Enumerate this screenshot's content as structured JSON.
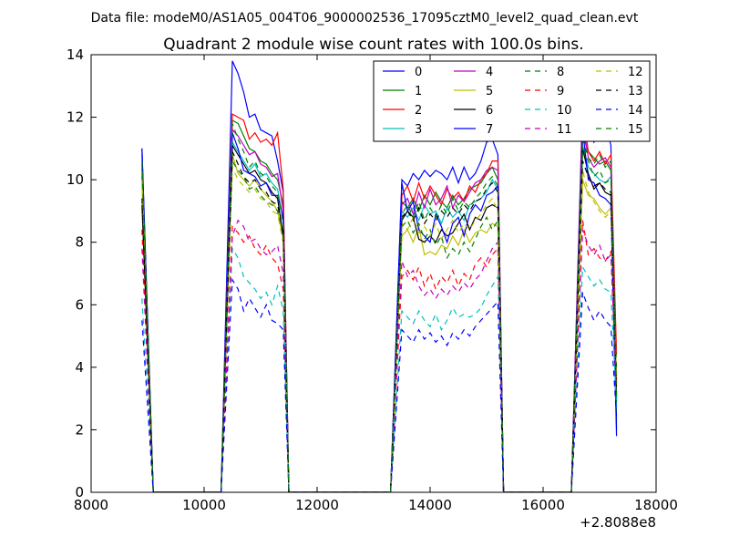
{
  "suptitle": "Data file: modeM0/AS1A05_004T06_9000002536_17095cztM0_level2_quad_clean.evt",
  "chart_data": {
    "type": "line",
    "title": "Quadrant 2 module wise count rates with 100.0s bins.",
    "xlabel": "",
    "ylabel": "",
    "xlim": [
      8000,
      18000
    ],
    "ylim": [
      0,
      14
    ],
    "x_ticks": [
      8000,
      10000,
      12000,
      14000,
      16000,
      18000
    ],
    "y_ticks": [
      0,
      2,
      4,
      6,
      8,
      10,
      12,
      14
    ],
    "x_tick_labels": [
      "8000",
      "10000",
      "12000",
      "14000",
      "16000",
      "18000"
    ],
    "y_tick_labels": [
      "0",
      "2",
      "4",
      "6",
      "8",
      "10",
      "12",
      "14"
    ],
    "x_offset_label": "+2.8088e8",
    "grid": false,
    "legend_position": "top-right",
    "legend_columns": 4,
    "x": [
      8900,
      9100,
      10300,
      10500,
      10600,
      10700,
      10800,
      10900,
      11000,
      11100,
      11200,
      11300,
      11400,
      11500,
      13300,
      13500,
      13600,
      13700,
      13800,
      13900,
      14000,
      14100,
      14200,
      14300,
      14400,
      14500,
      14600,
      14700,
      14800,
      14900,
      15000,
      15100,
      15200,
      15300,
      16500,
      16700,
      16800,
      16900,
      17000,
      17100,
      17200,
      17300
    ],
    "series": [
      {
        "name": "0",
        "color": "#0000ff",
        "dash": "solid",
        "values": [
          11.0,
          0,
          0,
          13.8,
          13.4,
          12.8,
          12.0,
          12.1,
          11.6,
          11.5,
          11.4,
          10.6,
          9.6,
          0,
          0,
          10.0,
          9.8,
          10.2,
          10.0,
          10.3,
          10.1,
          10.3,
          10.2,
          10.0,
          10.4,
          9.9,
          10.4,
          10.0,
          10.2,
          10.6,
          11.2,
          11.3,
          10.8,
          0,
          0,
          12.5,
          11.8,
          11.2,
          11.5,
          11.8,
          11.1,
          2.0
        ]
      },
      {
        "name": "1",
        "color": "#008000",
        "dash": "solid",
        "values": [
          10.8,
          0,
          0,
          11.9,
          11.8,
          11.4,
          11.0,
          10.9,
          10.6,
          10.5,
          10.2,
          10.0,
          9.2,
          0,
          0,
          9.3,
          9.1,
          9.4,
          9.0,
          9.5,
          9.2,
          9.6,
          9.3,
          9.1,
          9.5,
          9.2,
          9.4,
          9.7,
          9.8,
          9.9,
          10.2,
          10.4,
          10.0,
          0,
          0,
          11.4,
          10.9,
          10.7,
          10.5,
          10.6,
          10.3,
          2.3
        ]
      },
      {
        "name": "2",
        "color": "#ff0000",
        "dash": "solid",
        "values": [
          10.4,
          0,
          0,
          12.1,
          12.0,
          11.9,
          11.3,
          11.5,
          11.2,
          11.3,
          11.1,
          11.5,
          9.7,
          0,
          0,
          9.5,
          9.8,
          9.3,
          9.9,
          9.4,
          9.8,
          9.5,
          9.2,
          9.7,
          9.4,
          9.6,
          9.3,
          9.8,
          9.6,
          10.0,
          10.2,
          10.6,
          10.6,
          0,
          0,
          12.2,
          10.9,
          10.6,
          10.9,
          10.5,
          10.8,
          4.4
        ]
      },
      {
        "name": "3",
        "color": "#00bfbf",
        "dash": "solid",
        "values": [
          10.2,
          0,
          0,
          11.2,
          10.9,
          10.6,
          10.3,
          10.5,
          10.1,
          10.2,
          9.9,
          9.7,
          8.7,
          0,
          0,
          9.0,
          8.8,
          9.1,
          8.7,
          9.2,
          8.9,
          9.0,
          8.6,
          9.1,
          8.8,
          9.0,
          8.7,
          9.2,
          9.3,
          9.4,
          9.6,
          10.0,
          9.7,
          0,
          0,
          11.1,
          10.4,
          10.2,
          10.0,
          9.9,
          10.1,
          2.7
        ]
      },
      {
        "name": "4",
        "color": "#bf00bf",
        "dash": "solid",
        "values": [
          10.1,
          0,
          0,
          11.6,
          11.4,
          11.1,
          10.8,
          10.9,
          10.5,
          10.4,
          10.1,
          10.2,
          9.0,
          0,
          0,
          9.2,
          9.4,
          8.9,
          9.6,
          9.1,
          9.7,
          9.2,
          9.4,
          9.8,
          9.1,
          9.5,
          9.3,
          9.6,
          9.9,
          10.0,
          10.3,
          10.4,
          10.3,
          0,
          0,
          11.8,
          10.7,
          10.4,
          10.6,
          10.7,
          10.4,
          3.5
        ]
      },
      {
        "name": "5",
        "color": "#bfbf00",
        "dash": "solid",
        "values": [
          9.9,
          0,
          0,
          10.8,
          10.2,
          10.0,
          9.8,
          10.0,
          9.7,
          9.5,
          9.3,
          9.0,
          8.1,
          0,
          0,
          8.2,
          8.4,
          8.0,
          8.5,
          7.6,
          7.7,
          7.6,
          7.9,
          7.8,
          8.2,
          7.9,
          8.4,
          8.0,
          8.3,
          8.4,
          8.3,
          8.6,
          8.5,
          0,
          0,
          10.0,
          9.5,
          9.4,
          9.1,
          8.9,
          9.1,
          3.7
        ]
      },
      {
        "name": "6",
        "color": "#000000",
        "dash": "solid",
        "values": [
          9.2,
          0,
          0,
          11.1,
          10.8,
          10.5,
          10.2,
          10.3,
          10.0,
          9.9,
          9.6,
          9.4,
          8.2,
          0,
          0,
          8.7,
          9.0,
          8.8,
          8.1,
          8.0,
          8.2,
          8.0,
          8.4,
          8.2,
          8.3,
          8.6,
          8.9,
          8.4,
          8.8,
          8.7,
          9.1,
          9.2,
          9.1,
          0,
          0,
          11.0,
          10.2,
          9.7,
          9.9,
          9.6,
          9.5,
          3.0
        ]
      },
      {
        "name": "7",
        "color": "#0000ff",
        "dash": "solid",
        "values": [
          11.0,
          0,
          0,
          11.5,
          11.0,
          10.3,
          10.2,
          10.1,
          9.8,
          9.9,
          9.5,
          9.5,
          8.8,
          0,
          0,
          9.9,
          9.0,
          9.3,
          8.4,
          8.2,
          8.0,
          8.9,
          8.5,
          8.0,
          8.6,
          8.8,
          8.2,
          8.9,
          9.2,
          9.0,
          9.5,
          9.6,
          9.8,
          0,
          0,
          11.6,
          10.0,
          9.9,
          9.5,
          9.4,
          9.2,
          1.8
        ]
      },
      {
        "name": "8",
        "color": "#008000",
        "dash": "dashed",
        "values": [
          10.6,
          0,
          0,
          10.6,
          10.3,
          10.1,
          9.7,
          9.8,
          9.5,
          9.3,
          9.2,
          9.0,
          8.0,
          0,
          0,
          8.5,
          8.7,
          8.3,
          8.6,
          8.1,
          8.4,
          7.9,
          8.2,
          7.5,
          7.8,
          7.6,
          8.0,
          7.7,
          8.1,
          8.5,
          8.8,
          8.4,
          8.7,
          0,
          0,
          11.0,
          10.6,
          10.1,
          10.3,
          9.9,
          10.0,
          3.9
        ]
      },
      {
        "name": "9",
        "color": "#ff0000",
        "dash": "dashed",
        "values": [
          8.4,
          0,
          0,
          8.5,
          8.3,
          8.0,
          8.2,
          7.8,
          7.6,
          7.9,
          7.5,
          7.3,
          6.5,
          0,
          0,
          6.9,
          7.1,
          6.8,
          7.2,
          6.6,
          7.0,
          6.5,
          6.9,
          6.7,
          7.1,
          6.6,
          7.0,
          6.8,
          7.3,
          7.5,
          7.2,
          7.6,
          7.8,
          0,
          0,
          8.7,
          7.6,
          7.8,
          7.5,
          7.4,
          7.7,
          3.1
        ]
      },
      {
        "name": "10",
        "color": "#00bfbf",
        "dash": "dashed",
        "values": [
          6.2,
          0,
          0,
          7.8,
          7.5,
          6.9,
          6.7,
          6.5,
          6.2,
          6.4,
          6.0,
          6.6,
          5.8,
          0,
          0,
          5.8,
          5.6,
          5.4,
          5.8,
          5.5,
          5.3,
          5.7,
          5.2,
          5.5,
          5.9,
          5.6,
          5.7,
          5.6,
          5.7,
          5.9,
          6.3,
          6.6,
          6.9,
          0,
          0,
          7.2,
          6.9,
          6.6,
          6.8,
          6.5,
          6.4,
          2.8
        ]
      },
      {
        "name": "11",
        "color": "#bf00bf",
        "dash": "dashed",
        "values": [
          7.8,
          0,
          0,
          8.2,
          8.7,
          8.5,
          8.0,
          8.1,
          7.8,
          7.6,
          7.7,
          7.9,
          7.0,
          0,
          0,
          7.4,
          6.9,
          7.1,
          6.6,
          6.3,
          6.5,
          6.2,
          6.5,
          6.3,
          6.6,
          6.4,
          6.7,
          6.5,
          6.8,
          7.0,
          7.4,
          7.8,
          8.0,
          0,
          0,
          8.4,
          7.9,
          7.6,
          7.9,
          7.4,
          7.6,
          3.3
        ]
      },
      {
        "name": "12",
        "color": "#bfbf00",
        "dash": "dashed",
        "values": [
          10.0,
          0,
          0,
          10.4,
          10.0,
          9.8,
          9.6,
          9.7,
          9.4,
          9.3,
          9.0,
          8.9,
          8.0,
          0,
          0,
          8.6,
          8.4,
          8.8,
          8.3,
          8.5,
          8.2,
          8.6,
          8.1,
          8.4,
          8.7,
          8.3,
          8.6,
          8.4,
          8.7,
          8.9,
          9.2,
          9.4,
          9.0,
          0,
          0,
          10.3,
          9.6,
          9.3,
          9.0,
          8.8,
          9.0,
          3.4
        ]
      },
      {
        "name": "13",
        "color": "#000000",
        "dash": "dashed",
        "values": [
          9.4,
          0,
          0,
          10.9,
          10.5,
          10.1,
          9.9,
          10.0,
          9.7,
          9.6,
          9.3,
          9.2,
          8.3,
          0,
          0,
          8.8,
          9.0,
          8.7,
          9.1,
          8.6,
          8.9,
          8.7,
          9.0,
          8.8,
          9.1,
          8.9,
          9.2,
          9.0,
          9.3,
          9.4,
          9.7,
          9.9,
          9.6,
          0,
          0,
          10.6,
          10.1,
          9.8,
          9.9,
          9.7,
          9.6,
          3.2
        ]
      },
      {
        "name": "14",
        "color": "#0000ff",
        "dash": "dashed",
        "values": [
          5.5,
          0,
          0,
          6.8,
          6.5,
          5.8,
          6.2,
          5.9,
          5.6,
          6.0,
          5.5,
          5.4,
          5.2,
          0,
          0,
          5.2,
          5.0,
          4.8,
          5.2,
          4.9,
          5.1,
          4.8,
          5.0,
          4.7,
          5.1,
          4.9,
          5.2,
          5.0,
          5.3,
          5.5,
          5.7,
          5.9,
          6.1,
          0,
          0,
          6.4,
          5.9,
          5.5,
          5.8,
          5.5,
          5.3,
          2.4
        ]
      },
      {
        "name": "15",
        "color": "#008000",
        "dash": "dashed",
        "values": [
          10.5,
          0,
          0,
          11.8,
          11.3,
          10.9,
          10.4,
          10.6,
          10.2,
          10.1,
          9.8,
          9.6,
          8.6,
          0,
          0,
          8.9,
          9.2,
          8.8,
          9.3,
          8.7,
          9.1,
          8.8,
          9.2,
          8.9,
          9.4,
          9.0,
          9.3,
          9.1,
          9.4,
          9.6,
          9.9,
          10.1,
          9.8,
          0,
          0,
          11.3,
          10.7,
          10.5,
          10.8,
          10.4,
          10.6,
          2.9
        ]
      }
    ]
  }
}
